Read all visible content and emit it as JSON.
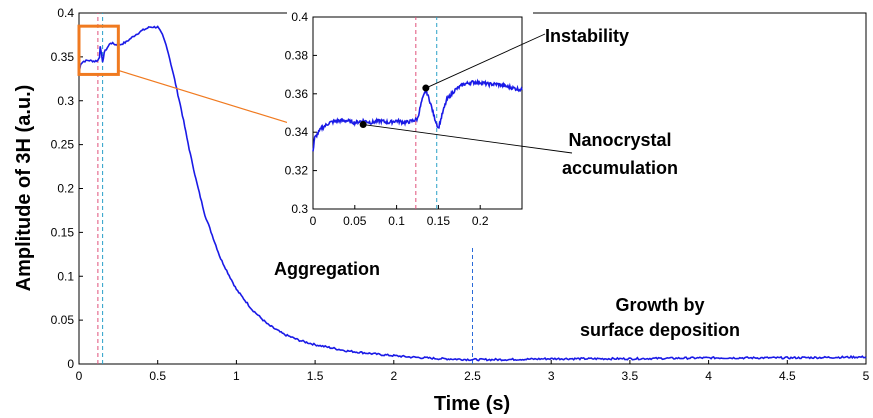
{
  "chart_data": [
    {
      "type": "line",
      "xlabel": "Time (s)",
      "ylabel": "Amplitude of 3H (a.u.)",
      "xlim": [
        0,
        5
      ],
      "ylim": [
        0,
        0.4
      ],
      "xticks": [
        0,
        0.5,
        1,
        1.5,
        2,
        2.5,
        3,
        3.5,
        4,
        4.5,
        5
      ],
      "xtick_labels": [
        "0",
        "0.5",
        "1",
        "1.5",
        "2",
        "2.5",
        "3",
        "3.5",
        "4",
        "4.5",
        "5"
      ],
      "yticks": [
        0,
        0.05,
        0.1,
        0.15,
        0.2,
        0.25,
        0.3,
        0.35,
        0.4
      ],
      "ytick_labels": [
        "0",
        "0.05",
        "0.1",
        "0.15",
        "0.2",
        "0.25",
        "0.3",
        "0.35",
        "0.4"
      ],
      "grid": false,
      "line_color": "#1a1ae6",
      "series": [
        {
          "x": [
            0,
            0.01,
            0.03,
            0.06,
            0.1,
            0.12,
            0.13,
            0.135,
            0.15,
            0.16,
            0.2,
            0.25,
            0.3,
            0.35,
            0.4,
            0.45,
            0.5,
            0.53,
            0.56,
            0.6,
            0.65,
            0.7,
            0.75,
            0.8,
            0.9,
            1.0,
            1.1,
            1.2,
            1.3,
            1.4,
            1.5,
            1.7,
            1.9,
            2.1,
            2.3,
            2.5,
            2.7,
            3.0,
            3.5,
            4.0,
            4.5,
            5.0
          ],
          "y": [
            0.33,
            0.342,
            0.345,
            0.346,
            0.345,
            0.346,
            0.35,
            0.363,
            0.343,
            0.355,
            0.366,
            0.363,
            0.367,
            0.374,
            0.38,
            0.384,
            0.384,
            0.375,
            0.36,
            0.33,
            0.29,
            0.245,
            0.205,
            0.17,
            0.12,
            0.085,
            0.062,
            0.045,
            0.034,
            0.027,
            0.022,
            0.015,
            0.011,
            0.008,
            0.006,
            0.005,
            0.005,
            0.006,
            0.006,
            0.007,
            0.007,
            0.008
          ]
        }
      ],
      "vlines": [
        {
          "x": 0.12,
          "color": "#e0507a",
          "ymax": 0.4
        },
        {
          "x": 0.15,
          "color": "#2aa0c8",
          "ymax": 0.4
        },
        {
          "x": 2.5,
          "color": "#2a6ad8",
          "ymax": 0.135
        }
      ],
      "zoom_box": {
        "x0": 0,
        "x1": 0.25,
        "y0": 0.33,
        "y1": 0.385,
        "color": "#f07a20"
      },
      "annotations": [
        "Aggregation",
        "Growth by",
        "surface deposition"
      ]
    },
    {
      "type": "line",
      "xlim": [
        0,
        0.25
      ],
      "ylim": [
        0.3,
        0.4
      ],
      "xticks": [
        0,
        0.05,
        0.1,
        0.15,
        0.2
      ],
      "xtick_labels": [
        "0",
        "0.05",
        "0.1",
        "0.15",
        "0.2"
      ],
      "yticks": [
        0.3,
        0.32,
        0.34,
        0.36,
        0.38,
        0.4
      ],
      "ytick_labels": [
        "0.3",
        "0.32",
        "0.34",
        "0.36",
        "0.38",
        "0.4"
      ],
      "grid": false,
      "line_color": "#1a1ae6",
      "series": [
        {
          "x": [
            0,
            0.002,
            0.01,
            0.02,
            0.03,
            0.04,
            0.05,
            0.06,
            0.07,
            0.08,
            0.09,
            0.1,
            0.11,
            0.12,
            0.125,
            0.13,
            0.135,
            0.14,
            0.145,
            0.15,
            0.155,
            0.16,
            0.17,
            0.18,
            0.19,
            0.2,
            0.21,
            0.22,
            0.23,
            0.24,
            0.25
          ],
          "y": [
            0.33,
            0.337,
            0.342,
            0.345,
            0.346,
            0.346,
            0.345,
            0.346,
            0.345,
            0.346,
            0.345,
            0.346,
            0.345,
            0.346,
            0.347,
            0.356,
            0.362,
            0.356,
            0.348,
            0.342,
            0.35,
            0.357,
            0.362,
            0.365,
            0.366,
            0.366,
            0.365,
            0.365,
            0.364,
            0.363,
            0.362
          ]
        }
      ],
      "vlines": [
        {
          "x": 0.123,
          "color": "#e0507a"
        },
        {
          "x": 0.148,
          "color": "#2aa0c8"
        }
      ],
      "markers": [
        {
          "x": 0.135,
          "y": 0.363,
          "label": "Instability"
        },
        {
          "x": 0.06,
          "y": 0.344,
          "label": "Nanocrystal accumulation"
        }
      ],
      "annotations": [
        "Instability",
        "Nanocrystal",
        "accumulation"
      ]
    }
  ]
}
